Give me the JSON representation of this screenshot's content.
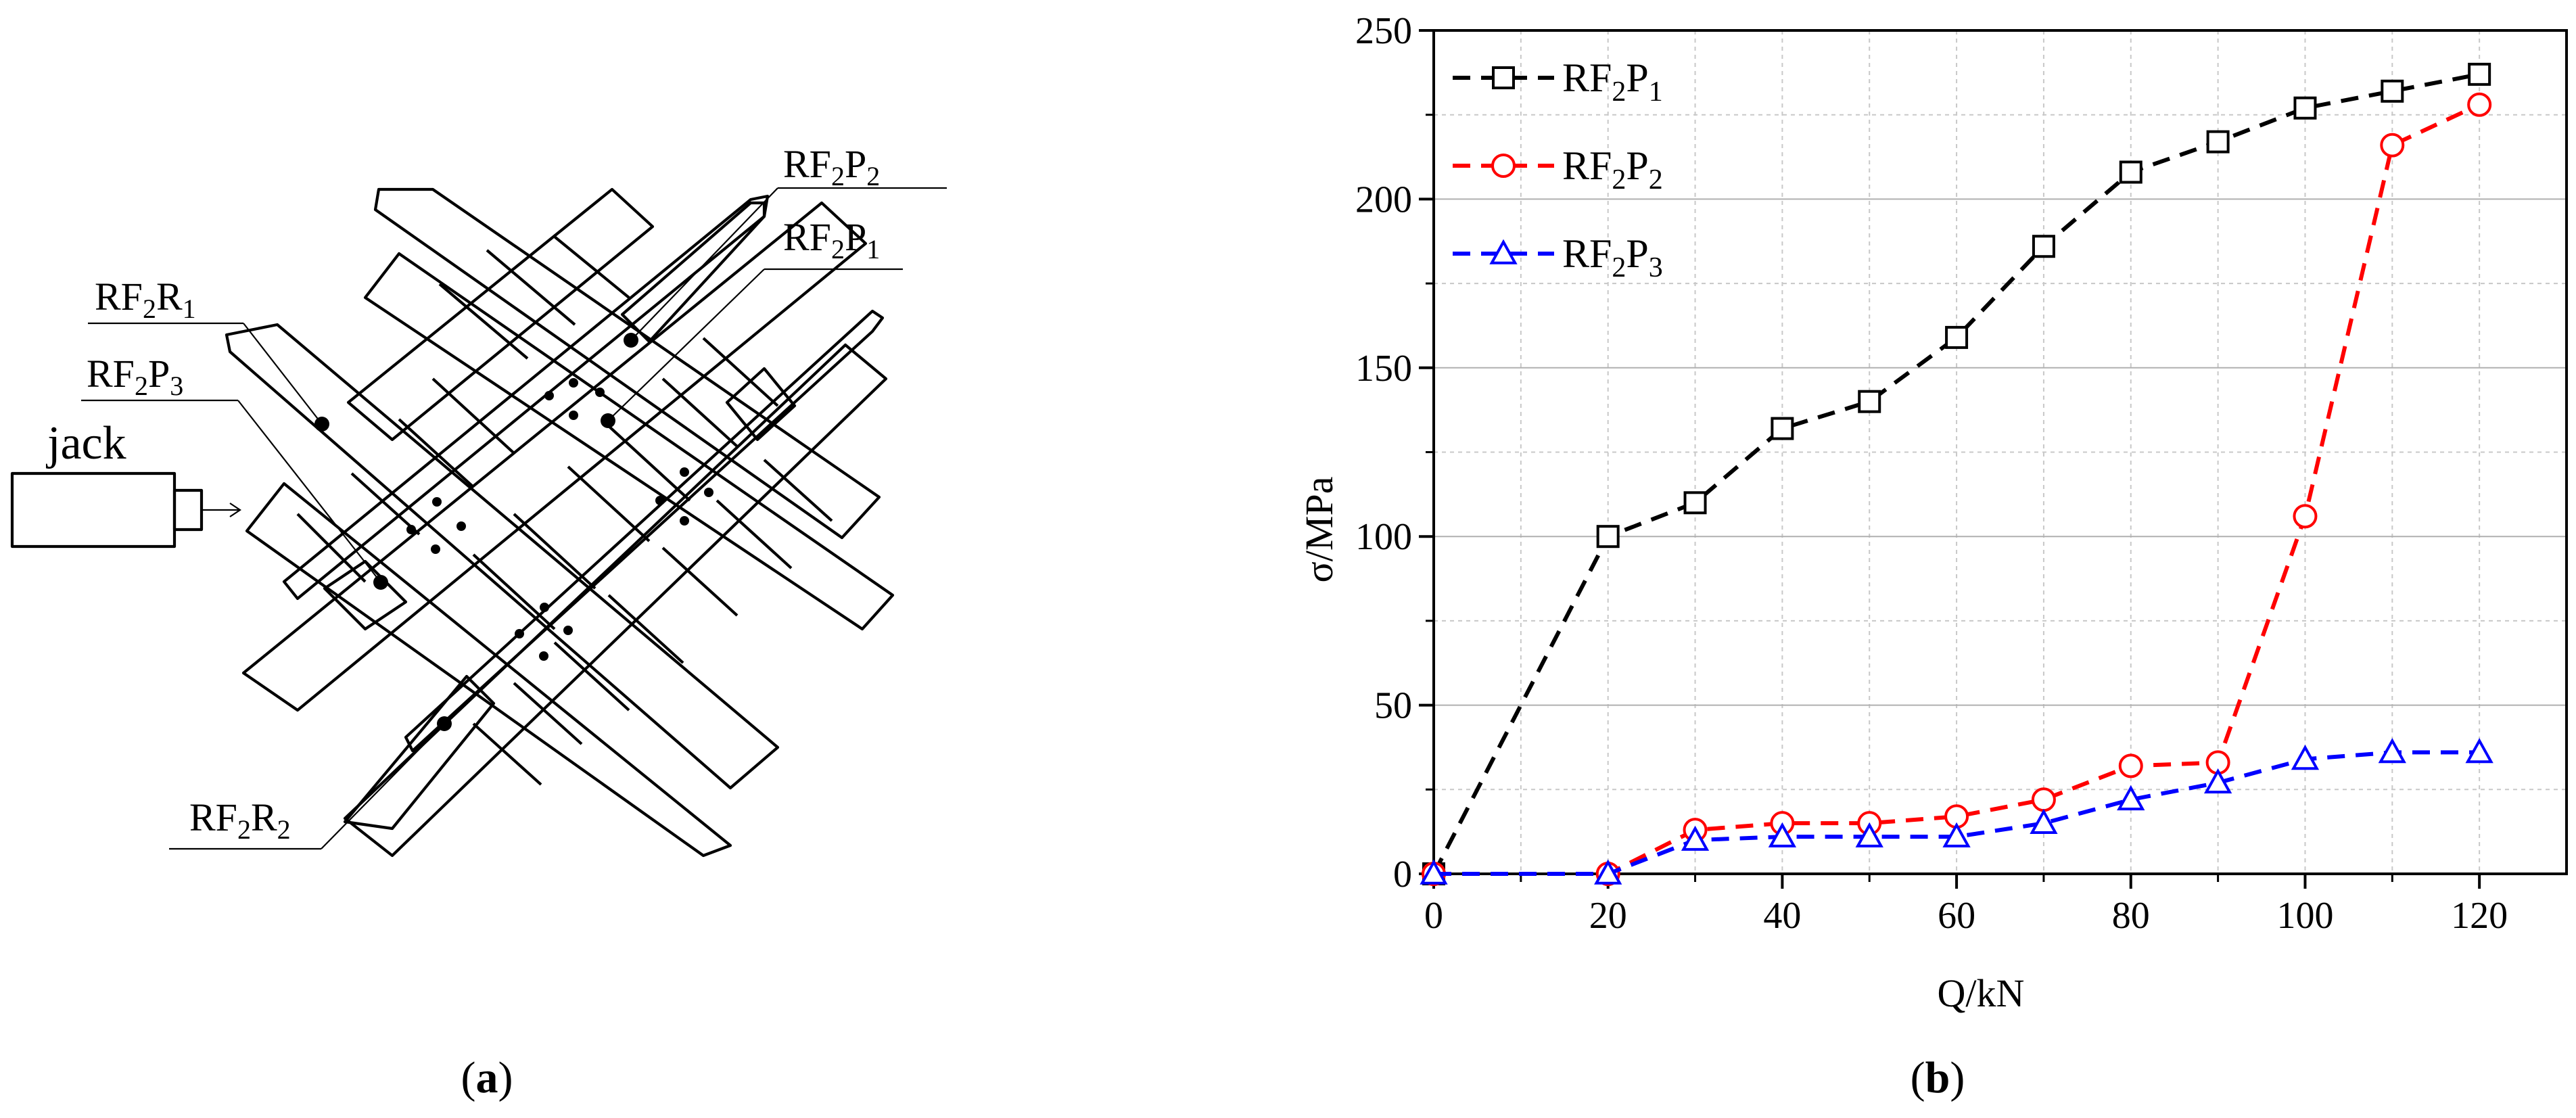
{
  "panel_a": {
    "caption_letter": "a",
    "jack_label": "jack",
    "labels": {
      "rf2p2": {
        "main": "RF",
        "sub1": "2",
        "mid": "P",
        "sub2": "2"
      },
      "rf2p1": {
        "main": "RF",
        "sub1": "2",
        "mid": "P",
        "sub2": "1"
      },
      "rf2r1": {
        "main": "RF",
        "sub1": "2",
        "mid": "R",
        "sub2": "1"
      },
      "rf2p3": {
        "main": "RF",
        "sub1": "2",
        "mid": "P",
        "sub2": "3"
      },
      "rf2r2": {
        "main": "RF",
        "sub1": "2",
        "mid": "R",
        "sub2": "2"
      }
    }
  },
  "panel_b": {
    "caption_letter": "b"
  },
  "chart_data": {
    "type": "line",
    "xlabel": "Q/kN",
    "ylabel": "σ/MPa",
    "xlim": [
      0,
      130
    ],
    "ylim": [
      0,
      250
    ],
    "xticks": [
      0,
      20,
      40,
      60,
      80,
      100,
      120
    ],
    "yticks": [
      0,
      50,
      100,
      150,
      200,
      250
    ],
    "grid": true,
    "legend_position": "top-left",
    "series": [
      {
        "name": "RF2P1",
        "legend": {
          "main": "RF",
          "sub1": "2",
          "mid": "P",
          "sub2": "1"
        },
        "color": "#000000",
        "marker": "square",
        "x": [
          0,
          20,
          30,
          40,
          50,
          60,
          70,
          80,
          90,
          100,
          110,
          120
        ],
        "y": [
          0,
          100,
          110,
          132,
          140,
          159,
          186,
          208,
          217,
          227,
          232,
          237
        ]
      },
      {
        "name": "RF2P2",
        "legend": {
          "main": "RF",
          "sub1": "2",
          "mid": "P",
          "sub2": "2"
        },
        "color": "#ff0000",
        "marker": "circle",
        "x": [
          0,
          20,
          30,
          40,
          50,
          60,
          70,
          80,
          90,
          100,
          110,
          120
        ],
        "y": [
          0,
          0,
          13,
          15,
          15,
          17,
          22,
          32,
          33,
          106,
          216,
          228
        ]
      },
      {
        "name": "RF2P3",
        "legend": {
          "main": "RF",
          "sub1": "2",
          "mid": "P",
          "sub2": "3"
        },
        "color": "#0000ff",
        "marker": "triangle",
        "x": [
          0,
          20,
          30,
          40,
          50,
          60,
          70,
          80,
          90,
          100,
          110,
          120
        ],
        "y": [
          0,
          0,
          10,
          11,
          11,
          11,
          15,
          22,
          27,
          34,
          36,
          36
        ]
      }
    ]
  }
}
